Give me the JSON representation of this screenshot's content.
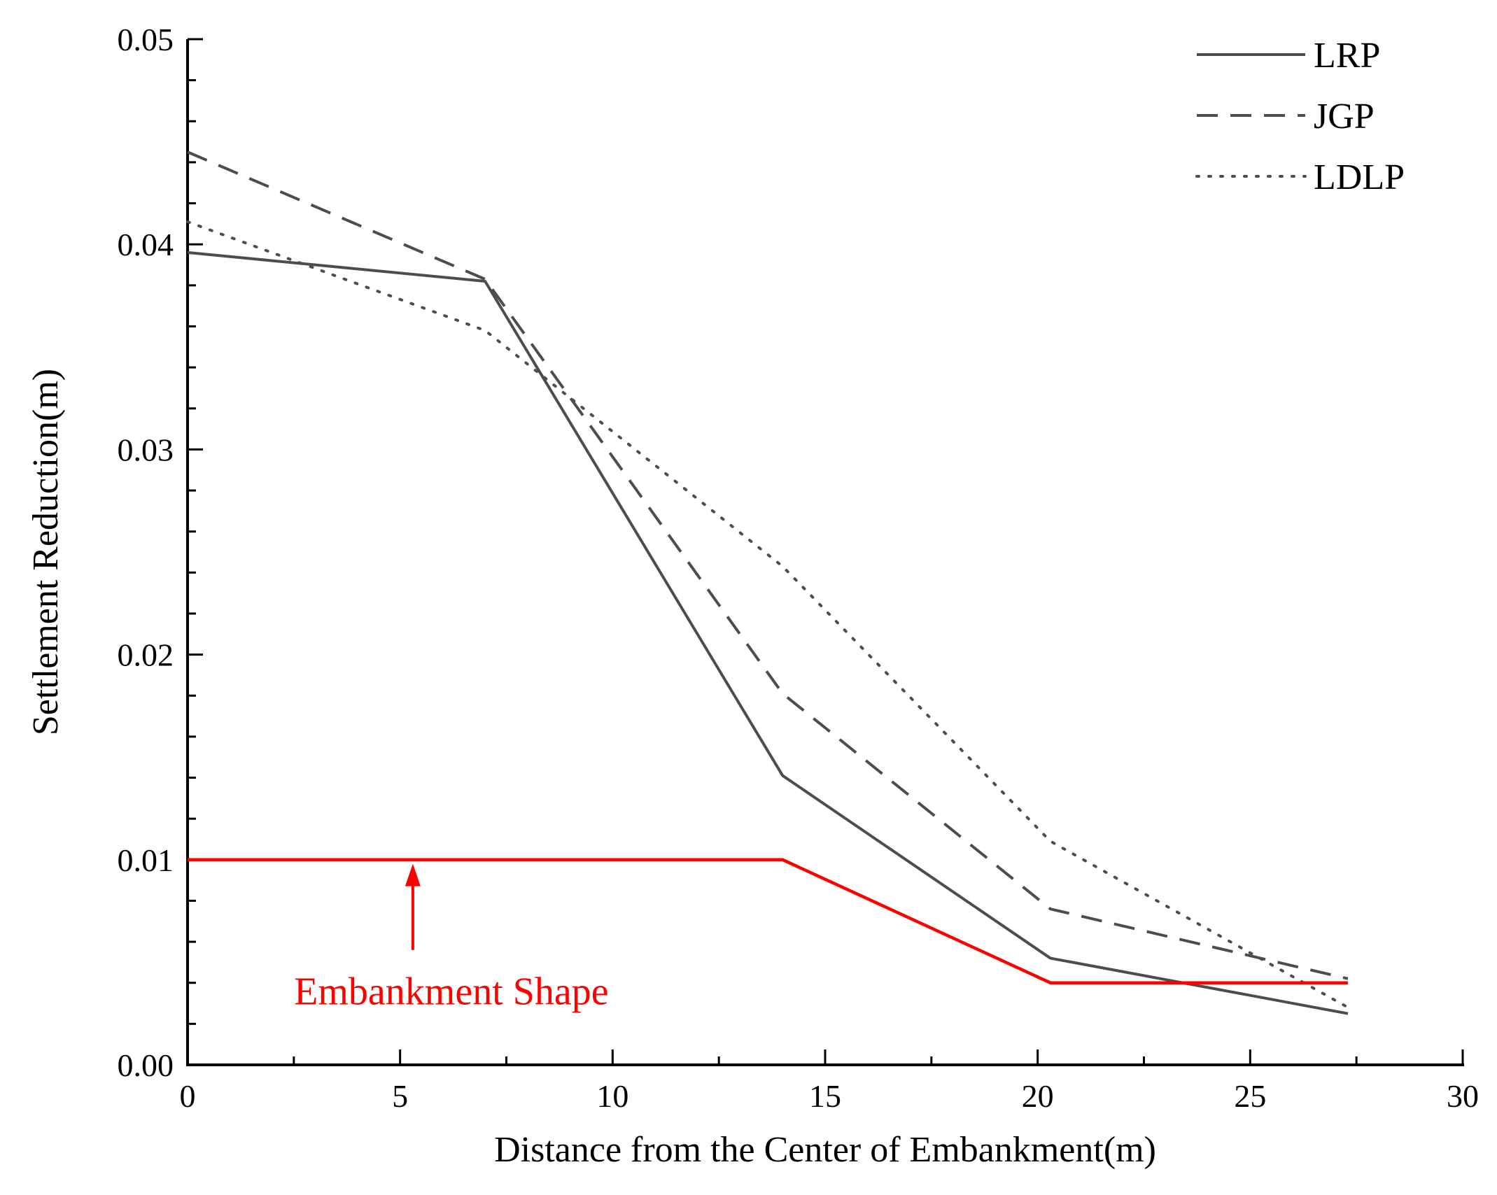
{
  "chart_data": {
    "type": "line",
    "title": "",
    "xlabel": "Distance from the Center of Embankment(m)",
    "ylabel": "Settlement Reduction(m)",
    "xlim": [
      0,
      30
    ],
    "ylim": [
      0,
      0.05
    ],
    "x_ticks": [
      0,
      5,
      10,
      15,
      20,
      25,
      30
    ],
    "x_tick_labels": [
      "0",
      "5",
      "10",
      "15",
      "20",
      "25",
      "30"
    ],
    "y_ticks": [
      0,
      0.01,
      0.02,
      0.03,
      0.04,
      0.05
    ],
    "y_tick_labels": [
      "0.00",
      "0.01",
      "0.02",
      "0.03",
      "0.04",
      "0.05"
    ],
    "grid": false,
    "legend_position": "top-right",
    "series": [
      {
        "name": "LRP",
        "style": "solid",
        "color": "#4d4d4d",
        "x": [
          0,
          7,
          14,
          20.3,
          27.3
        ],
        "y": [
          0.0396,
          0.0382,
          0.0141,
          0.0052,
          0.0025
        ]
      },
      {
        "name": "JGP",
        "style": "dashed",
        "color": "#4d4d4d",
        "x": [
          0,
          7,
          14,
          20.3,
          27.3
        ],
        "y": [
          0.0445,
          0.0383,
          0.0181,
          0.0076,
          0.0042
        ]
      },
      {
        "name": "LDLP",
        "style": "dotted",
        "color": "#4d4d4d",
        "x": [
          0,
          7,
          14,
          20.3,
          27.3
        ],
        "y": [
          0.0411,
          0.0358,
          0.0243,
          0.0109,
          0.0028
        ]
      }
    ],
    "annotation": {
      "label": "Embankment Shape",
      "color": "#ff0000",
      "shape": {
        "x": [
          0,
          14,
          20.3,
          27.3
        ],
        "y": [
          0.01,
          0.01,
          0.004,
          0.004
        ]
      },
      "arrow": {
        "x": 5.3,
        "from_y": 0.0056,
        "to_y": 0.0098
      },
      "text_anchor": {
        "x": 5.3,
        "y": 0.0039
      }
    }
  }
}
